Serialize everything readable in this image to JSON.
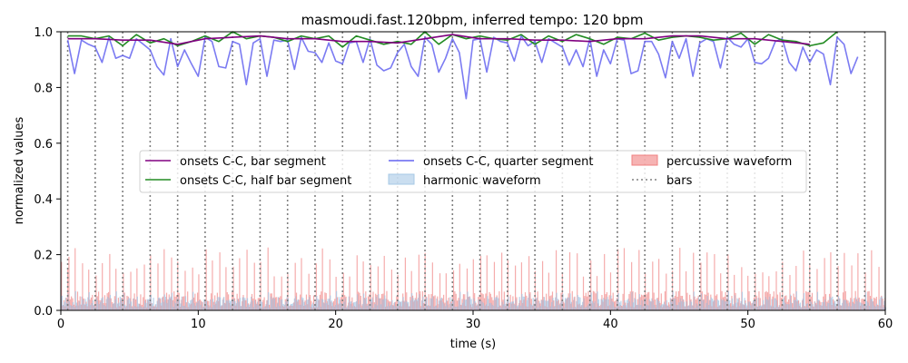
{
  "chart_data": {
    "type": "line",
    "title": "masmoudi.fast.120bpm, inferred tempo: 120 bpm",
    "xlabel": "time (s)",
    "ylabel": "normalized values",
    "xlim": [
      0,
      60
    ],
    "ylim": [
      0,
      1
    ],
    "x_ticks": [
      "0",
      "10",
      "20",
      "30",
      "40",
      "50",
      "60"
    ],
    "y_ticks": [
      "0.0",
      "0.2",
      "0.4",
      "0.6",
      "0.8",
      "1.0"
    ],
    "legend_position": "center",
    "bars": {
      "name": "bars",
      "color": "#808080",
      "times": [
        0.5,
        2.5,
        4.5,
        6.5,
        8.5,
        10.5,
        12.5,
        14.5,
        16.5,
        18.5,
        20.5,
        22.5,
        24.5,
        26.5,
        28.5,
        30.5,
        32.5,
        34.5,
        36.5,
        38.5,
        40.5,
        42.5,
        44.5,
        46.5,
        48.5,
        50.5,
        52.5,
        54.5,
        56.5,
        58.5
      ]
    },
    "series": [
      {
        "name": "onsets C-C, bar segment",
        "color": "#800080",
        "x": [
          0.5,
          2.5,
          4.5,
          6.5,
          8.5,
          10.5,
          12.5,
          14.5,
          16.5,
          18.5,
          20.5,
          22.5,
          24.5,
          26.5,
          28.5,
          30.5,
          32.5,
          34.5,
          36.5,
          38.5,
          40.5,
          42.5,
          44.5,
          46.5,
          48.5,
          50.5,
          52.5,
          54.5
        ],
        "y": [
          0.975,
          0.975,
          0.97,
          0.97,
          0.955,
          0.975,
          0.98,
          0.985,
          0.975,
          0.975,
          0.965,
          0.965,
          0.96,
          0.975,
          0.99,
          0.975,
          0.975,
          0.97,
          0.97,
          0.965,
          0.975,
          0.975,
          0.985,
          0.985,
          0.975,
          0.975,
          0.965,
          0.955
        ]
      },
      {
        "name": "onsets C-C, half bar segment",
        "color": "#228b22",
        "x": [
          0.5,
          1.5,
          2.5,
          3.5,
          4.5,
          5.5,
          6.5,
          7.5,
          8.5,
          9.5,
          10.5,
          11.5,
          12.5,
          13.5,
          14.5,
          15.5,
          16.5,
          17.5,
          18.5,
          19.5,
          20.5,
          21.5,
          22.5,
          23.5,
          24.5,
          25.5,
          26.5,
          27.5,
          28.5,
          29.5,
          30.5,
          31.5,
          32.5,
          33.5,
          34.5,
          35.5,
          36.5,
          37.5,
          38.5,
          39.5,
          40.5,
          41.5,
          42.5,
          43.5,
          44.5,
          45.5,
          46.5,
          47.5,
          48.5,
          49.5,
          50.5,
          51.5,
          52.5,
          53.5,
          54.5,
          55.5,
          56.5
        ],
        "y": [
          0.985,
          0.985,
          0.975,
          0.985,
          0.95,
          0.99,
          0.96,
          0.975,
          0.95,
          0.965,
          0.985,
          0.965,
          1.0,
          0.975,
          0.985,
          0.98,
          0.965,
          0.985,
          0.975,
          0.985,
          0.945,
          0.985,
          0.97,
          0.955,
          0.965,
          0.955,
          1.0,
          0.955,
          0.99,
          0.975,
          0.985,
          0.975,
          0.97,
          0.99,
          0.955,
          0.985,
          0.965,
          0.99,
          0.975,
          0.955,
          0.98,
          0.975,
          0.995,
          0.97,
          0.98,
          0.985,
          0.98,
          0.97,
          0.975,
          0.995,
          0.955,
          0.99,
          0.97,
          0.965,
          0.95,
          0.96,
          1.0
        ]
      },
      {
        "name": "onsets C-C, quarter segment",
        "color": "#6464f0",
        "x": [
          0.5,
          1.0,
          1.5,
          2.0,
          2.5,
          3.0,
          3.5,
          4.0,
          4.5,
          5.0,
          5.5,
          6.0,
          6.5,
          7.0,
          7.5,
          8.0,
          8.5,
          9.0,
          9.5,
          10.0,
          10.5,
          11.0,
          11.5,
          12.0,
          12.5,
          13.0,
          13.5,
          14.0,
          14.5,
          15.0,
          15.5,
          16.0,
          16.5,
          17.0,
          17.5,
          18.0,
          18.5,
          19.0,
          19.5,
          20.0,
          20.5,
          21.0,
          21.5,
          22.0,
          22.5,
          23.0,
          23.5,
          24.0,
          24.5,
          25.0,
          25.5,
          26.0,
          26.5,
          27.0,
          27.5,
          28.0,
          28.5,
          29.0,
          29.5,
          30.0,
          30.5,
          31.0,
          31.5,
          32.0,
          32.5,
          33.0,
          33.5,
          34.0,
          34.5,
          35.0,
          35.5,
          36.0,
          36.5,
          37.0,
          37.5,
          38.0,
          38.5,
          39.0,
          39.5,
          40.0,
          40.5,
          41.0,
          41.5,
          42.0,
          42.5,
          43.0,
          43.5,
          44.0,
          44.5,
          45.0,
          45.5,
          46.0,
          46.5,
          47.0,
          47.5,
          48.0,
          48.5,
          49.0,
          49.5,
          50.0,
          50.5,
          51.0,
          51.5,
          52.0,
          52.5,
          53.0,
          53.5,
          54.0,
          54.5,
          55.0,
          55.5,
          56.0,
          56.5,
          57.0,
          57.5,
          58.0
        ],
        "y": [
          0.97,
          0.85,
          0.97,
          0.955,
          0.945,
          0.89,
          0.98,
          0.905,
          0.915,
          0.905,
          0.975,
          0.955,
          0.935,
          0.875,
          0.845,
          0.975,
          0.875,
          0.935,
          0.885,
          0.84,
          0.98,
          0.965,
          0.875,
          0.87,
          0.965,
          0.955,
          0.81,
          0.96,
          0.975,
          0.84,
          0.97,
          0.965,
          0.97,
          0.865,
          0.98,
          0.93,
          0.925,
          0.89,
          0.96,
          0.895,
          0.885,
          0.96,
          0.965,
          0.89,
          0.975,
          0.88,
          0.86,
          0.87,
          0.925,
          0.955,
          0.875,
          0.84,
          0.98,
          0.955,
          0.855,
          0.905,
          0.975,
          0.925,
          0.76,
          0.97,
          0.975,
          0.855,
          0.98,
          0.965,
          0.96,
          0.895,
          0.985,
          0.95,
          0.965,
          0.89,
          0.975,
          0.96,
          0.945,
          0.88,
          0.935,
          0.875,
          0.975,
          0.84,
          0.935,
          0.885,
          0.975,
          0.97,
          0.85,
          0.86,
          0.965,
          0.965,
          0.92,
          0.835,
          0.965,
          0.905,
          0.975,
          0.84,
          0.96,
          0.975,
          0.965,
          0.87,
          0.98,
          0.955,
          0.945,
          0.975,
          0.89,
          0.885,
          0.905,
          0.965,
          0.975,
          0.89,
          0.86,
          0.945,
          0.89,
          0.935,
          0.92,
          0.81,
          0.98,
          0.955,
          0.85,
          0.91
        ]
      }
    ],
    "area_series": [
      {
        "name": "harmonic waveform",
        "color": "#a6c8e6"
      },
      {
        "name": "percussive waveform",
        "color": "#f08080"
      }
    ],
    "legend": {
      "col1": [
        "onsets C-C, bar segment",
        "onsets C-C, half bar segment"
      ],
      "col2": [
        "onsets C-C, quarter segment",
        "harmonic waveform"
      ],
      "col3": [
        "percussive waveform",
        "bars"
      ]
    }
  }
}
